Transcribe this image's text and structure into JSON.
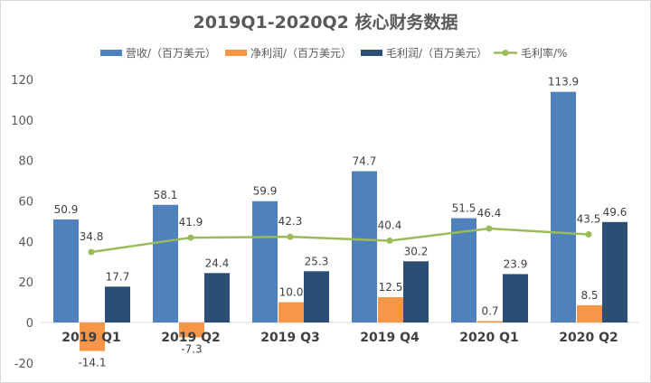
{
  "chart_data": {
    "type": "bar+line",
    "title": "2019Q1-2020Q2 核心财务数据",
    "categories": [
      "2019 Q1",
      "2019 Q2",
      "2019 Q3",
      "2019 Q4",
      "2020 Q1",
      "2020 Q2"
    ],
    "ylim": [
      -20,
      120
    ],
    "yticks": [
      -20,
      0,
      20,
      40,
      60,
      80,
      100,
      120
    ],
    "grid": false,
    "legend_placement": "top",
    "series": [
      {
        "name": "营收/（百万美元）",
        "type": "bar",
        "color": "#4F81BD",
        "values": [
          50.9,
          58.1,
          59.9,
          74.7,
          51.5,
          113.9
        ]
      },
      {
        "name": "净利润/（百万美元）",
        "type": "bar",
        "color": "#F79646",
        "values": [
          -14.1,
          -7.3,
          10.0,
          12.5,
          0.7,
          8.5
        ]
      },
      {
        "name": "毛利润/（百万美元）",
        "type": "bar",
        "color": "#2C4D75",
        "values": [
          17.7,
          24.4,
          25.3,
          30.2,
          23.9,
          49.6
        ]
      },
      {
        "name": "毛利率/%",
        "type": "line",
        "color": "#9BBB59",
        "values": [
          34.8,
          41.9,
          42.3,
          40.4,
          46.4,
          43.5
        ]
      }
    ]
  }
}
